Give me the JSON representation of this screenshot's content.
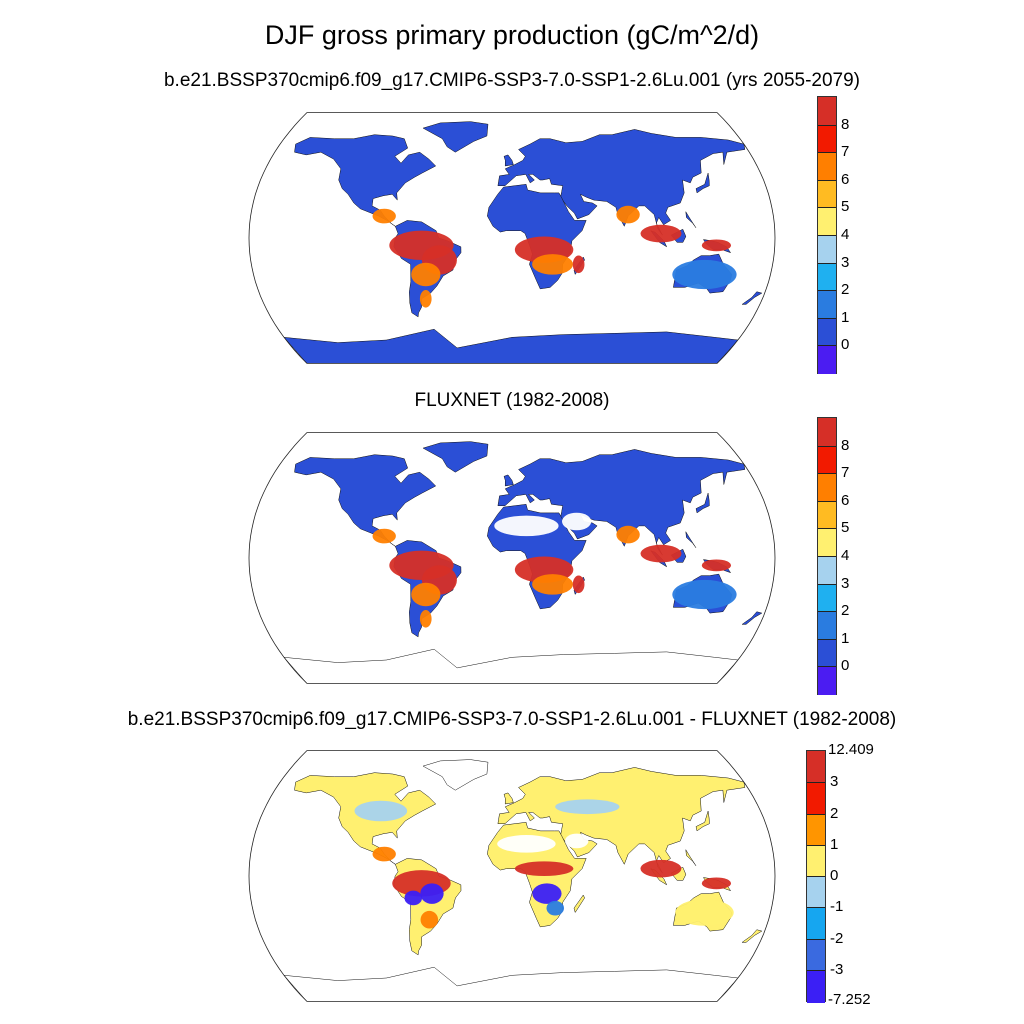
{
  "title": "DJF gross primary production (gC/m^2/d)",
  "panels": [
    {
      "id": "model",
      "subtitle": "b.e21.BSSP370cmip6.f09_g17.CMIP6-SSP3-7.0-SSP1-2.6Lu.001 (yrs 2055-2079)",
      "colorbar": {
        "labels": [
          "8",
          "7",
          "6",
          "5",
          "4",
          "3",
          "2",
          "1",
          "0"
        ],
        "colors": [
          "#d62f27",
          "#f21a00",
          "#ff7f00",
          "#ffbb22",
          "#fff070",
          "#a6d2ee",
          "#1fb0f0",
          "#2a7ce0",
          "#2b4fd6",
          "#4b1cf2"
        ]
      }
    },
    {
      "id": "obs",
      "subtitle": "FLUXNET (1982-2008)",
      "colorbar": {
        "labels": [
          "8",
          "7",
          "6",
          "5",
          "4",
          "3",
          "2",
          "1",
          "0"
        ],
        "colors": [
          "#d62f27",
          "#f21a00",
          "#ff7f00",
          "#ffbb22",
          "#fff070",
          "#a6d2ee",
          "#1fb0f0",
          "#2a7ce0",
          "#2b4fd6",
          "#4b1cf2"
        ]
      }
    },
    {
      "id": "diff",
      "subtitle": "b.e21.BSSP370cmip6.f09_g17.CMIP6-SSP3-7.0-SSP1-2.6Lu.001 - FLUXNET (1982-2008)",
      "colorbar": {
        "max_label": "12.409",
        "min_label": "-7.252",
        "labels": [
          "3",
          "2",
          "1",
          "0",
          "-1",
          "-2",
          "-3"
        ],
        "colors": [
          "#d62f27",
          "#f21a00",
          "#ff9500",
          "#fff070",
          "#a6d2ee",
          "#16a6f0",
          "#3a6ae0",
          "#3b1ff5"
        ]
      }
    }
  ],
  "map_colors": {
    "low": "#2b4fd6",
    "lowmid": "#2a7ce0",
    "mid": "#1fb0f0",
    "high": "#d62f27",
    "orange": "#ff7f00",
    "yellow": "#fff070",
    "lightblue": "#a6d2ee",
    "deepblue": "#3b1ff5",
    "white": "#ffffff"
  }
}
